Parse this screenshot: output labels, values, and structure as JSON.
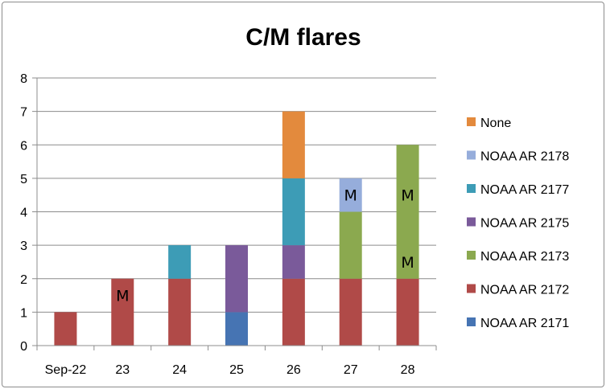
{
  "chart_data": {
    "type": "bar",
    "stacked": true,
    "title": "C/M flares",
    "xlabel": "",
    "ylabel": "",
    "categories": [
      "Sep-22",
      "23",
      "24",
      "25",
      "26",
      "27",
      "28"
    ],
    "ylim": [
      0,
      8
    ],
    "yticks": [
      0,
      1,
      2,
      3,
      4,
      5,
      6,
      7,
      8
    ],
    "grid": "horizontal",
    "legend_position": "right",
    "series": [
      {
        "name": "NOAA AR 2171",
        "color": "#4674b3",
        "values": [
          0,
          0,
          0,
          1,
          0,
          0,
          0
        ]
      },
      {
        "name": "NOAA AR 2172",
        "color": "#b04a48",
        "values": [
          1,
          2,
          2,
          0,
          2,
          2,
          2
        ]
      },
      {
        "name": "NOAA AR 2173",
        "color": "#8ba94f",
        "values": [
          0,
          0,
          0,
          0,
          0,
          2,
          4
        ]
      },
      {
        "name": "NOAA AR 2175",
        "color": "#7a5a9a",
        "values": [
          0,
          0,
          0,
          2,
          1,
          0,
          0
        ]
      },
      {
        "name": "NOAA AR 2177",
        "color": "#3d9cb6",
        "values": [
          0,
          0,
          1,
          0,
          2,
          0,
          0
        ]
      },
      {
        "name": "NOAA AR 2178",
        "color": "#96addb",
        "values": [
          0,
          0,
          0,
          0,
          0,
          1,
          0
        ]
      },
      {
        "name": "None",
        "color": "#e38a3d",
        "values": [
          0,
          0,
          0,
          0,
          2,
          0,
          0
        ]
      }
    ],
    "annotations": [
      {
        "text": "M",
        "category": "23",
        "y": 1.5
      },
      {
        "text": "M",
        "category": "27",
        "y": 4.5
      },
      {
        "text": "M",
        "category": "28",
        "y": 4.5
      },
      {
        "text": "M",
        "category": "28",
        "y": 2.5
      }
    ]
  }
}
